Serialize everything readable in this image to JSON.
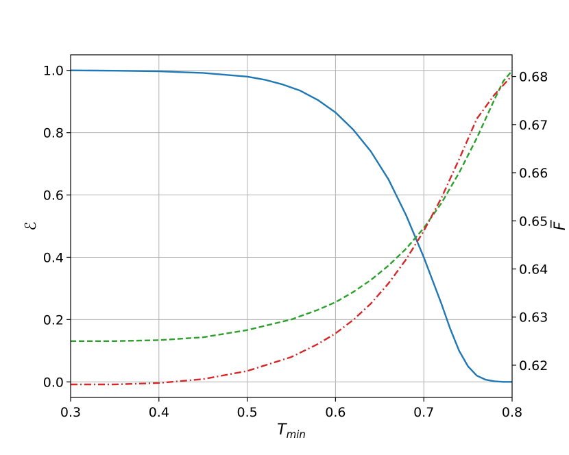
{
  "chart_data": {
    "type": "line",
    "title": "",
    "xlabel_main": "T",
    "xlabel_sub": "min",
    "ylabel_left": "ℰ",
    "ylabel_right": "F̅",
    "xlim": [
      0.3,
      0.8
    ],
    "ylim_left": [
      -0.05,
      1.05
    ],
    "ylim_right": [
      0.6133,
      0.6845
    ],
    "grid": true,
    "x_ticks": [
      {
        "value": 0.3,
        "label": "0.3"
      },
      {
        "value": 0.4,
        "label": "0.4"
      },
      {
        "value": 0.5,
        "label": "0.5"
      },
      {
        "value": 0.6,
        "label": "0.6"
      },
      {
        "value": 0.7,
        "label": "0.7"
      },
      {
        "value": 0.8,
        "label": "0.8"
      }
    ],
    "y_ticks_left": [
      {
        "value": 0.0,
        "label": "0.0"
      },
      {
        "value": 0.2,
        "label": "0.2"
      },
      {
        "value": 0.4,
        "label": "0.4"
      },
      {
        "value": 0.6,
        "label": "0.6"
      },
      {
        "value": 0.8,
        "label": "0.8"
      },
      {
        "value": 1.0,
        "label": "1.0"
      }
    ],
    "y_ticks_right": [
      {
        "value": 0.62,
        "label": "0.62"
      },
      {
        "value": 0.63,
        "label": "0.63"
      },
      {
        "value": 0.64,
        "label": "0.64"
      },
      {
        "value": 0.65,
        "label": "0.65"
      },
      {
        "value": 0.66,
        "label": "0.66"
      },
      {
        "value": 0.67,
        "label": "0.67"
      },
      {
        "value": 0.68,
        "label": "0.68"
      }
    ],
    "series": [
      {
        "axis": "left",
        "color": "#1f77b4",
        "dash": "solid",
        "x": [
          0.3,
          0.35,
          0.4,
          0.45,
          0.5,
          0.52,
          0.54,
          0.56,
          0.58,
          0.6,
          0.62,
          0.64,
          0.66,
          0.68,
          0.7,
          0.72,
          0.73,
          0.74,
          0.75,
          0.76,
          0.77,
          0.78,
          0.79,
          0.8
        ],
        "y": [
          1.0,
          0.999,
          0.997,
          0.992,
          0.98,
          0.97,
          0.955,
          0.935,
          0.905,
          0.865,
          0.81,
          0.74,
          0.65,
          0.535,
          0.4,
          0.25,
          0.17,
          0.1,
          0.05,
          0.02,
          0.007,
          0.002,
          0.0,
          0.0
        ]
      },
      {
        "axis": "right",
        "color": "#2ca02c",
        "dash": "dashed",
        "x": [
          0.3,
          0.35,
          0.4,
          0.45,
          0.5,
          0.55,
          0.58,
          0.6,
          0.62,
          0.64,
          0.66,
          0.68,
          0.7,
          0.72,
          0.74,
          0.76,
          0.78,
          0.79,
          0.8
        ],
        "y": [
          0.625,
          0.625,
          0.6252,
          0.6258,
          0.6273,
          0.6295,
          0.6315,
          0.6331,
          0.6352,
          0.6377,
          0.6407,
          0.6442,
          0.6485,
          0.6537,
          0.66,
          0.6672,
          0.6752,
          0.679,
          0.6812
        ]
      },
      {
        "axis": "right",
        "color": "#d62728",
        "dash": "dashdot",
        "x": [
          0.3,
          0.35,
          0.4,
          0.45,
          0.5,
          0.55,
          0.58,
          0.6,
          0.62,
          0.64,
          0.66,
          0.68,
          0.7,
          0.72,
          0.74,
          0.76,
          0.78,
          0.8
        ],
        "y": [
          0.616,
          0.616,
          0.6163,
          0.6171,
          0.6188,
          0.6217,
          0.6244,
          0.6266,
          0.6294,
          0.6328,
          0.637,
          0.642,
          0.6479,
          0.6548,
          0.6628,
          0.6712,
          0.6762,
          0.6802
        ]
      }
    ]
  }
}
